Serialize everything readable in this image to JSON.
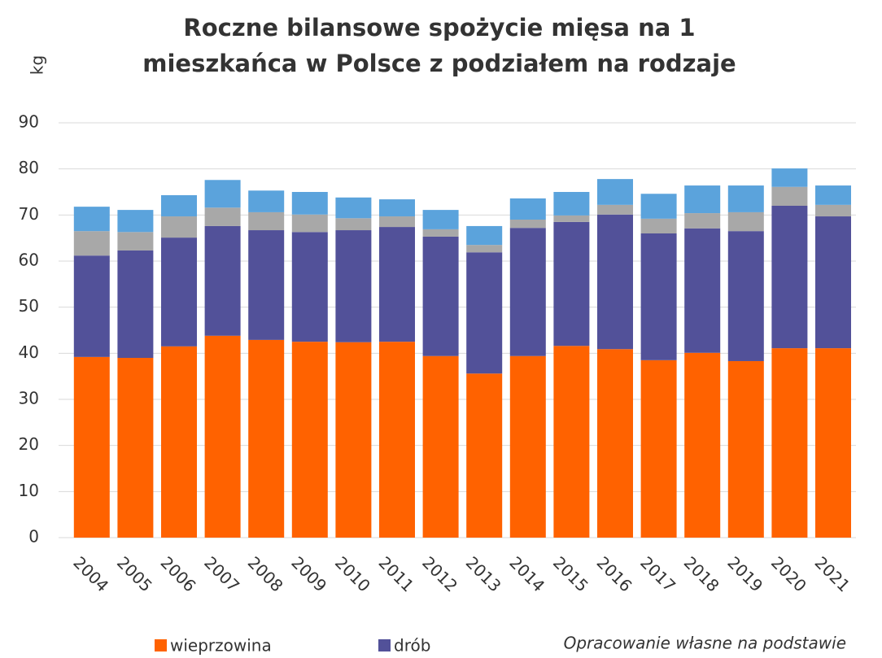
{
  "chart_data": {
    "type": "stacked_bar",
    "title": [
      "Roczne bilansowe spożycie mięsa na 1",
      "mieszkańca w Polsce z podziałem na rodzaje"
    ],
    "y_label": "kg",
    "source": "Opracowanie własne na podstawie",
    "categories": [
      "2004",
      "2005",
      "2006",
      "2007",
      "2008",
      "2009",
      "2010",
      "2011",
      "2012",
      "2013",
      "2014",
      "2015",
      "2016",
      "2017",
      "2018",
      "2019",
      "2020",
      "2021"
    ],
    "series": [
      {
        "name": "wieprzowina",
        "color": "#ff6200",
        "values": [
          39.2,
          39.0,
          41.5,
          43.8,
          42.9,
          42.5,
          42.4,
          42.5,
          39.4,
          35.6,
          39.4,
          41.6,
          40.9,
          38.5,
          40.1,
          38.3,
          41.1,
          41.1
        ]
      },
      {
        "name": "drób",
        "color": "#525199",
        "values": [
          22.0,
          23.3,
          23.6,
          23.8,
          23.8,
          23.8,
          24.3,
          24.9,
          25.9,
          26.3,
          27.8,
          26.9,
          29.2,
          27.5,
          27.0,
          28.2,
          30.9,
          28.6
        ]
      },
      {
        "color": "#a8a8a8",
        "values": [
          5.3,
          4.0,
          4.6,
          4.0,
          3.9,
          3.8,
          2.6,
          2.3,
          1.6,
          1.6,
          1.8,
          1.4,
          2.1,
          3.2,
          3.3,
          4.1,
          4.1,
          2.5
        ]
      },
      {
        "color": "#5ba3dc",
        "values": [
          5.3,
          4.8,
          4.6,
          6.0,
          4.7,
          4.9,
          4.5,
          3.7,
          4.2,
          4.1,
          4.6,
          5.1,
          5.6,
          5.4,
          6.0,
          5.8,
          4.0,
          4.2
        ]
      }
    ],
    "ylim": [
      0,
      90
    ],
    "yticks": [
      0,
      10,
      20,
      30,
      40,
      50,
      60,
      70,
      80,
      90
    ],
    "grid": true
  }
}
